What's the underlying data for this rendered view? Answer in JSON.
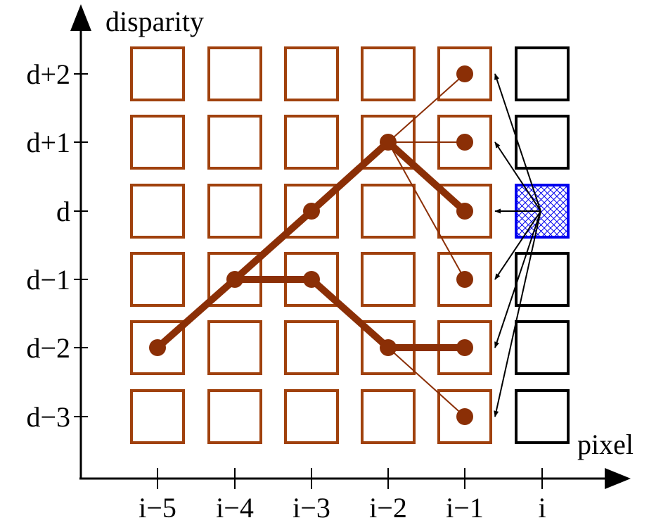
{
  "axes": {
    "y_label": "disparity",
    "x_label": "pixel"
  },
  "rows": [
    "d+2",
    "d+1",
    "d",
    "d−1",
    "d−2",
    "d−3"
  ],
  "columns": [
    "i−5",
    "i−4",
    "i−3",
    "i−2",
    "i−1",
    "i"
  ],
  "colors": {
    "grid": "#a0410d",
    "path": "#8b2f06",
    "current_column": "#000000",
    "highlight": "#0000ee",
    "axis": "#000000"
  },
  "highlight_cell": {
    "column": "i",
    "row": "d"
  },
  "dots": [
    {
      "column": "i−5",
      "row": "d−2"
    },
    {
      "column": "i−4",
      "row": "d−1"
    },
    {
      "column": "i−3",
      "row": "d"
    },
    {
      "column": "i−3",
      "row": "d−1"
    },
    {
      "column": "i−2",
      "row": "d+1"
    },
    {
      "column": "i−2",
      "row": "d−2"
    },
    {
      "column": "i−1",
      "row": "d+2"
    },
    {
      "column": "i−1",
      "row": "d+1"
    },
    {
      "column": "i−1",
      "row": "d"
    },
    {
      "column": "i−1",
      "row": "d−1"
    },
    {
      "column": "i−1",
      "row": "d−2"
    },
    {
      "column": "i−1",
      "row": "d−3"
    }
  ],
  "thick_paths": [
    [
      {
        "column": "i−5",
        "row": "d−2"
      },
      {
        "column": "i−4",
        "row": "d−1"
      },
      {
        "column": "i−3",
        "row": "d"
      },
      {
        "column": "i−2",
        "row": "d+1"
      },
      {
        "column": "i−1",
        "row": "d"
      }
    ],
    [
      {
        "column": "i−4",
        "row": "d−1"
      },
      {
        "column": "i−3",
        "row": "d−1"
      },
      {
        "column": "i−2",
        "row": "d−2"
      },
      {
        "column": "i−1",
        "row": "d−2"
      }
    ]
  ],
  "thin_links": [
    {
      "from": {
        "column": "i−2",
        "row": "d+1"
      },
      "to": {
        "column": "i−1",
        "row": "d+2"
      }
    },
    {
      "from": {
        "column": "i−2",
        "row": "d+1"
      },
      "to": {
        "column": "i−1",
        "row": "d+1"
      }
    },
    {
      "from": {
        "column": "i−2",
        "row": "d+1"
      },
      "to": {
        "column": "i−1",
        "row": "d−1"
      }
    },
    {
      "from": {
        "column": "i−2",
        "row": "d−2"
      },
      "to": {
        "column": "i−1",
        "row": "d−3"
      }
    }
  ],
  "arrow_targets": [
    "d+2",
    "d+1",
    "d",
    "d−1",
    "d−2",
    "d−3"
  ]
}
